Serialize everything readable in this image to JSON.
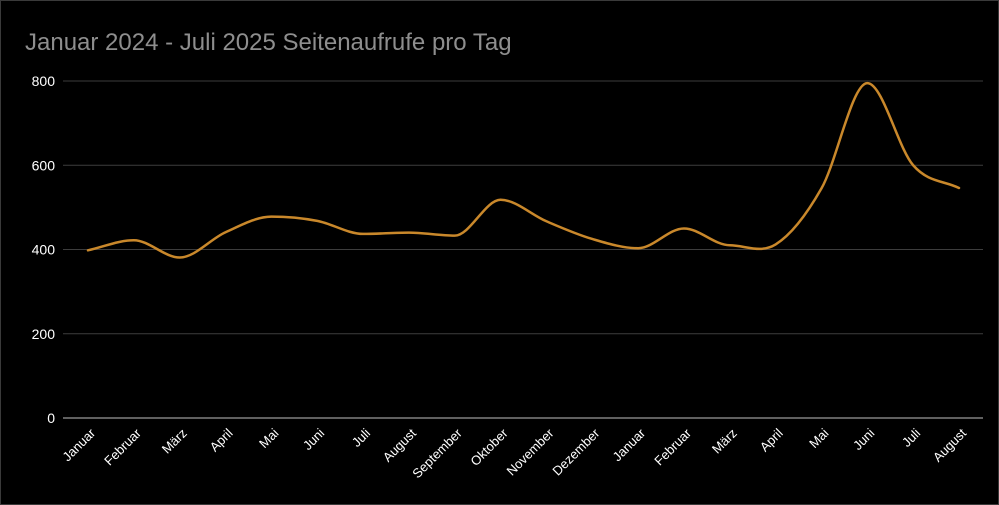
{
  "chart_data": {
    "type": "line",
    "title": "Januar 2024 - Juli 2025 Seitenaufrufe pro Tag",
    "xlabel": "",
    "ylabel": "",
    "ylim": [
      0,
      800
    ],
    "yticks": [
      "0",
      "200",
      "400",
      "600",
      "800"
    ],
    "categories": [
      "Januar",
      "Februar",
      "März",
      "April",
      "Mai",
      "Juni",
      "Juli",
      "August",
      "September",
      "Oktober",
      "November",
      "Dezember",
      "Januar",
      "Februar",
      "März",
      "April",
      "Mai",
      "Juni",
      "Juli",
      "August"
    ],
    "series": [
      {
        "color": "#c9882b",
        "values": [
          398,
          422,
          381,
          441,
          478,
          468,
          437,
          440,
          433,
          518,
          467,
          425,
          403,
          450,
          410,
          412,
          545,
          795,
          600,
          546
        ]
      }
    ],
    "grid": true,
    "legend": "none",
    "background": "#000000",
    "text_color": "#ffffff",
    "title_color": "#8e8e8e",
    "grid_color": "#3d3d3d"
  }
}
